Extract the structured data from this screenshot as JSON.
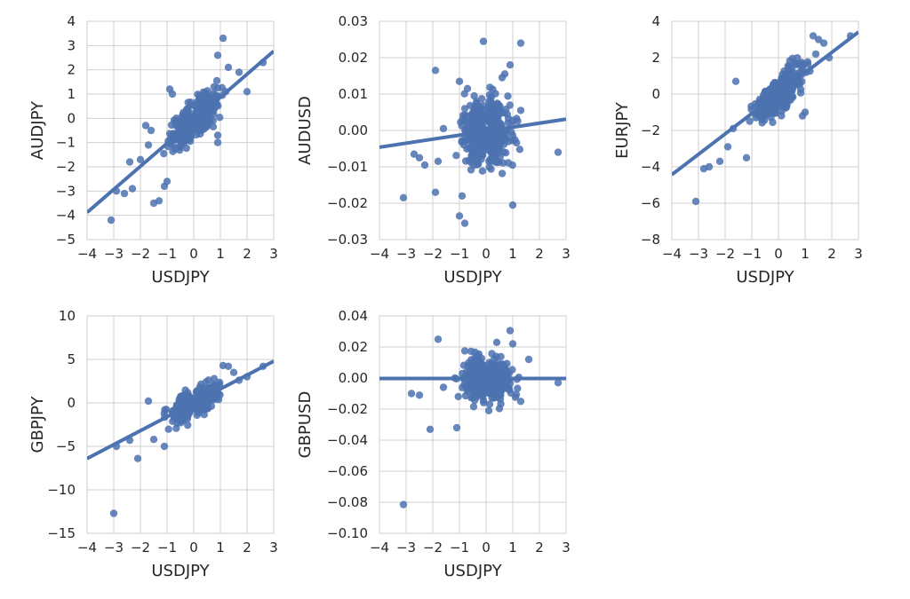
{
  "style": {
    "point_color": "#4c72b0",
    "line_color": "#4c72b0",
    "grid_color": "#cfcfcf",
    "background": "#ffffff"
  },
  "chart_data": [
    {
      "type": "scatter",
      "title": "",
      "xlabel": "USDJPY",
      "ylabel": "AUDJPY",
      "xlim": [
        -4,
        3
      ],
      "ylim": [
        -5,
        4
      ],
      "xticks": [
        -4,
        -3,
        -2,
        -1,
        0,
        1,
        2,
        3
      ],
      "xtick_labels": [
        "−4",
        "−3",
        "−2",
        "−1",
        "0",
        "1",
        "2",
        "3"
      ],
      "yticks": [
        -5,
        -4,
        -3,
        -2,
        -1,
        0,
        1,
        2,
        3,
        4
      ],
      "ytick_labels": [
        "−5",
        "−4",
        "−3",
        "−2",
        "−1",
        "0",
        "1",
        "2",
        "3",
        "4"
      ],
      "grid": true,
      "regression_line": {
        "slope": 0.95,
        "intercept": -0.08
      },
      "outliers": [
        [
          -3.1,
          -4.2
        ],
        [
          -2.9,
          -3.0
        ],
        [
          -2.6,
          -3.1
        ],
        [
          -2.3,
          -2.9
        ],
        [
          -1.5,
          -3.5
        ],
        [
          -1.3,
          -3.4
        ],
        [
          -1.1,
          -2.8
        ],
        [
          -1.0,
          -2.6
        ],
        [
          -2.4,
          -1.8
        ],
        [
          -2.0,
          -1.7
        ],
        [
          -1.7,
          -1.1
        ],
        [
          -1.8,
          -0.3
        ],
        [
          -1.6,
          -0.5
        ],
        [
          -0.9,
          1.2
        ],
        [
          -0.8,
          1.0
        ],
        [
          1.1,
          3.3
        ],
        [
          0.9,
          2.6
        ],
        [
          1.3,
          2.1
        ],
        [
          1.7,
          1.9
        ],
        [
          2.6,
          2.3
        ],
        [
          2.0,
          1.1
        ],
        [
          1.2,
          1.1
        ],
        [
          0.9,
          -1.0
        ],
        [
          0.9,
          -0.7
        ]
      ],
      "cluster": {
        "n": 380,
        "x_range": [
          -1.2,
          1.3
        ],
        "slope": 0.95,
        "intercept": -0.08,
        "noise": 0.35
      }
    },
    {
      "type": "scatter",
      "title": "",
      "xlabel": "USDJPY",
      "ylabel": "AUDUSD",
      "xlim": [
        -4,
        3
      ],
      "ylim": [
        -0.03,
        0.03
      ],
      "xticks": [
        -4,
        -3,
        -2,
        -1,
        0,
        1,
        2,
        3
      ],
      "xtick_labels": [
        "−4",
        "−3",
        "−2",
        "−1",
        "0",
        "1",
        "2",
        "3"
      ],
      "yticks": [
        -0.03,
        -0.02,
        -0.01,
        0,
        0.01,
        0.02,
        0.03
      ],
      "ytick_labels": [
        "−0.03",
        "−0.02",
        "−0.01",
        "0.00",
        "0.01",
        "0.02",
        "0.03"
      ],
      "grid": true,
      "regression_line": {
        "slope": 0.0011,
        "intercept": -0.0002
      },
      "outliers": [
        [
          -3.1,
          -0.0185
        ],
        [
          -2.7,
          -0.0065
        ],
        [
          -2.5,
          -0.0075
        ],
        [
          -2.3,
          -0.0095
        ],
        [
          -1.9,
          0.0165
        ],
        [
          -1.8,
          -0.0085
        ],
        [
          -1.9,
          -0.017
        ],
        [
          -1.0,
          -0.0235
        ],
        [
          -0.8,
          -0.0255
        ],
        [
          -0.9,
          -0.018
        ],
        [
          -0.1,
          0.0245
        ],
        [
          -1.0,
          0.0135
        ],
        [
          1.3,
          0.024
        ],
        [
          0.9,
          0.018
        ],
        [
          1.0,
          -0.0205
        ],
        [
          2.7,
          -0.006
        ],
        [
          1.3,
          0.0055
        ],
        [
          -0.7,
          0.0115
        ],
        [
          0.6,
          0.0145
        ],
        [
          -1.6,
          0.0005
        ]
      ],
      "cluster": {
        "n": 420,
        "x_range": [
          -1.2,
          1.3
        ],
        "slope": 0.0011,
        "intercept": -0.0002,
        "noise": 0.0045
      }
    },
    {
      "type": "scatter",
      "title": "",
      "xlabel": "USDJPY",
      "ylabel": "EURJPY",
      "xlim": [
        -4,
        3
      ],
      "ylim": [
        -8,
        4
      ],
      "xticks": [
        -4,
        -3,
        -2,
        -1,
        0,
        1,
        2,
        3
      ],
      "xtick_labels": [
        "−4",
        "−3",
        "−2",
        "−1",
        "0",
        "1",
        "2",
        "3"
      ],
      "yticks": [
        -8,
        -6,
        -4,
        -2,
        0,
        2,
        4
      ],
      "ytick_labels": [
        "−8",
        "−6",
        "−4",
        "−2",
        "0",
        "2",
        "4"
      ],
      "grid": true,
      "regression_line": {
        "slope": 1.12,
        "intercept": 0.05
      },
      "outliers": [
        [
          -3.1,
          -5.9
        ],
        [
          -2.8,
          -4.1
        ],
        [
          -2.6,
          -4.0
        ],
        [
          -2.2,
          -3.7
        ],
        [
          -1.9,
          -2.9
        ],
        [
          -1.7,
          -1.9
        ],
        [
          -1.6,
          0.7
        ],
        [
          -1.2,
          -3.5
        ],
        [
          1.3,
          3.2
        ],
        [
          1.5,
          3.0
        ],
        [
          1.7,
          2.8
        ],
        [
          2.7,
          3.2
        ],
        [
          1.4,
          2.2
        ],
        [
          1.9,
          2.0
        ],
        [
          0.9,
          -1.2
        ],
        [
          1.0,
          -1.0
        ]
      ],
      "cluster": {
        "n": 400,
        "x_range": [
          -1.2,
          1.3
        ],
        "slope": 1.12,
        "intercept": 0.05,
        "noise": 0.45
      }
    },
    {
      "type": "scatter",
      "title": "",
      "xlabel": "USDJPY",
      "ylabel": "GBPJPY",
      "xlim": [
        -4,
        3
      ],
      "ylim": [
        -15,
        10
      ],
      "xticks": [
        -4,
        -3,
        -2,
        -1,
        0,
        1,
        2,
        3
      ],
      "xtick_labels": [
        "−4",
        "−3",
        "−2",
        "−1",
        "0",
        "1",
        "2",
        "3"
      ],
      "yticks": [
        -15,
        -10,
        -5,
        0,
        5,
        10
      ],
      "ytick_labels": [
        "−15",
        "−10",
        "−5",
        "0",
        "5",
        "10"
      ],
      "grid": true,
      "regression_line": {
        "slope": 1.6,
        "intercept": 0.0
      },
      "outliers": [
        [
          -3.0,
          -12.7
        ],
        [
          -2.1,
          -6.4
        ],
        [
          -2.9,
          -5.0
        ],
        [
          -2.4,
          -4.3
        ],
        [
          -1.1,
          -5.0
        ],
        [
          -1.5,
          -4.2
        ],
        [
          -1.7,
          0.2
        ],
        [
          2.6,
          4.2
        ],
        [
          1.1,
          4.3
        ],
        [
          1.3,
          4.2
        ],
        [
          1.5,
          3.5
        ],
        [
          2.0,
          3.0
        ],
        [
          1.7,
          2.6
        ]
      ],
      "cluster": {
        "n": 380,
        "x_range": [
          -1.2,
          1.3
        ],
        "slope": 1.6,
        "intercept": 0.0,
        "noise": 0.75
      }
    },
    {
      "type": "scatter",
      "title": "",
      "xlabel": "USDJPY",
      "ylabel": "GBPUSD",
      "xlim": [
        -4,
        3
      ],
      "ylim": [
        -0.1,
        0.04
      ],
      "xticks": [
        -4,
        -3,
        -2,
        -1,
        0,
        1,
        2,
        3
      ],
      "xtick_labels": [
        "−4",
        "−3",
        "−2",
        "−1",
        "0",
        "1",
        "2",
        "3"
      ],
      "yticks": [
        -0.1,
        -0.08,
        -0.06,
        -0.04,
        -0.02,
        0,
        0.02,
        0.04
      ],
      "ytick_labels": [
        "−0.10",
        "−0.08",
        "−0.06",
        "−0.04",
        "−0.02",
        "0.00",
        "0.02",
        "0.04"
      ],
      "grid": true,
      "regression_line": {
        "slope": 0.0,
        "intercept": -0.0003
      },
      "outliers": [
        [
          -3.1,
          -0.0815
        ],
        [
          -2.8,
          -0.01
        ],
        [
          -2.5,
          -0.011
        ],
        [
          -2.1,
          -0.033
        ],
        [
          -1.8,
          0.025
        ],
        [
          -1.1,
          -0.032
        ],
        [
          -0.8,
          0.0175
        ],
        [
          0.4,
          0.023
        ],
        [
          0.9,
          0.0305
        ],
        [
          1.0,
          0.022
        ],
        [
          1.6,
          0.012
        ],
        [
          2.7,
          -0.003
        ],
        [
          1.3,
          -0.015
        ],
        [
          0.1,
          -0.021
        ],
        [
          -1.6,
          -0.006
        ]
      ],
      "cluster": {
        "n": 420,
        "x_range": [
          -1.2,
          1.3
        ],
        "slope": 0.0,
        "intercept": -0.0003,
        "noise": 0.0065
      }
    }
  ]
}
